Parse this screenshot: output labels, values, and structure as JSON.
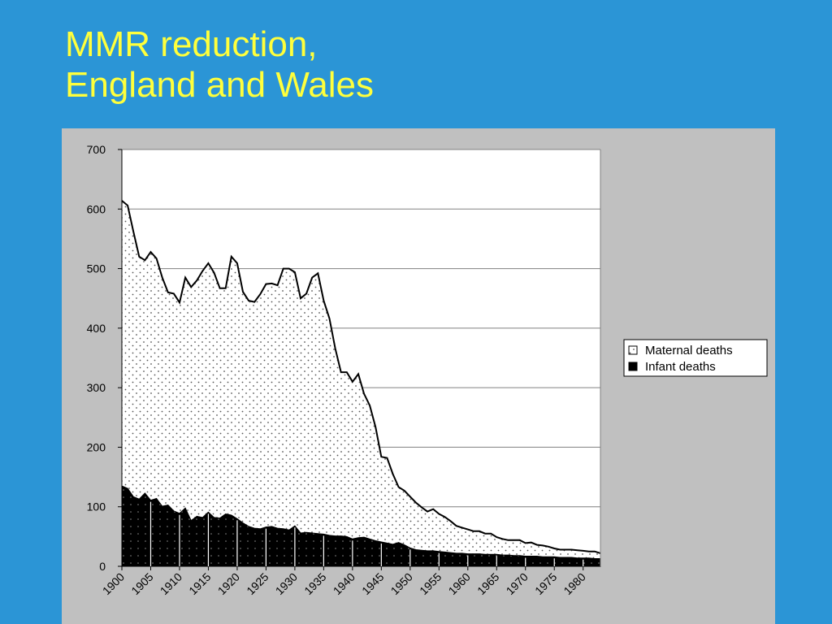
{
  "slide": {
    "title_line1": "MMR reduction,",
    "title_line2": "England and Wales"
  },
  "colors": {
    "background": "#2b95d6",
    "title": "#ffff3c",
    "panel": "#c0c0c0",
    "plot": "#ffffff",
    "infant_fill": "#000000",
    "line": "#000000"
  },
  "chart_data": {
    "type": "area",
    "stacked": true,
    "x_start": 1900,
    "x_end": 1983,
    "ylim": [
      0,
      700
    ],
    "yticks": [
      0,
      100,
      200,
      300,
      400,
      500,
      600,
      700
    ],
    "xticks": [
      1900,
      1905,
      1910,
      1915,
      1920,
      1925,
      1930,
      1935,
      1940,
      1945,
      1950,
      1955,
      1960,
      1965,
      1970,
      1975,
      1980
    ],
    "ytick_labels": [
      "0",
      "100",
      "200",
      "300",
      "400",
      "500",
      "600",
      "700"
    ],
    "xtick_labels": [
      "1900",
      "1905",
      "1910",
      "1915",
      "1920",
      "1925",
      "1930",
      "1935",
      "1940",
      "1945",
      "1950",
      "1955",
      "1960",
      "1965",
      "1970",
      "1975",
      "1980"
    ],
    "grid": true,
    "legend_position": "right",
    "x": [
      1900,
      1901,
      1902,
      1903,
      1904,
      1905,
      1906,
      1907,
      1908,
      1909,
      1910,
      1911,
      1912,
      1913,
      1914,
      1915,
      1916,
      1917,
      1918,
      1919,
      1920,
      1921,
      1922,
      1923,
      1924,
      1925,
      1926,
      1927,
      1928,
      1929,
      1930,
      1931,
      1932,
      1933,
      1934,
      1935,
      1936,
      1937,
      1938,
      1939,
      1940,
      1941,
      1942,
      1943,
      1944,
      1945,
      1946,
      1947,
      1948,
      1949,
      1950,
      1951,
      1952,
      1953,
      1954,
      1955,
      1956,
      1957,
      1958,
      1959,
      1960,
      1961,
      1962,
      1963,
      1964,
      1965,
      1966,
      1967,
      1968,
      1969,
      1970,
      1971,
      1972,
      1973,
      1974,
      1975,
      1976,
      1977,
      1978,
      1979,
      1980,
      1981,
      1982,
      1983
    ],
    "series": [
      {
        "name": "Maternal deaths",
        "pattern": "dotted",
        "total_values": [
          614,
          606,
          562,
          520,
          514,
          528,
          517,
          485,
          460,
          458,
          443,
          485,
          469,
          480,
          496,
          509,
          493,
          467,
          467,
          520,
          509,
          461,
          446,
          444,
          457,
          474,
          475,
          472,
          500,
          500,
          494,
          450,
          458,
          485,
          492,
          446,
          416,
          366,
          326,
          326,
          310,
          323,
          290,
          270,
          234,
          184,
          182,
          155,
          133,
          127,
          117,
          107,
          99,
          92,
          96,
          88,
          83,
          76,
          68,
          65,
          62,
          59,
          59,
          55,
          55,
          49,
          46,
          44,
          44,
          44,
          39,
          40,
          36,
          35,
          33,
          30,
          28,
          28,
          28,
          27,
          26,
          25,
          25,
          22
        ]
      },
      {
        "name": "Infant deaths",
        "pattern": "solid",
        "values": [
          135,
          131,
          117,
          113,
          123,
          111,
          114,
          101,
          103,
          93,
          89,
          98,
          77,
          84,
          82,
          91,
          82,
          81,
          88,
          86,
          80,
          73,
          67,
          64,
          63,
          66,
          67,
          64,
          63,
          61,
          68,
          56,
          57,
          56,
          55,
          54,
          52,
          51,
          51,
          50,
          46,
          48,
          49,
          46,
          43,
          41,
          39,
          37,
          40,
          36,
          31,
          28,
          27,
          26,
          26,
          25,
          24,
          23,
          22,
          22,
          21,
          21,
          21,
          20,
          20,
          20,
          19,
          19,
          18,
          18,
          17,
          17,
          17,
          16,
          16,
          16,
          15,
          15,
          15,
          14,
          14,
          14,
          13,
          13
        ]
      }
    ]
  }
}
